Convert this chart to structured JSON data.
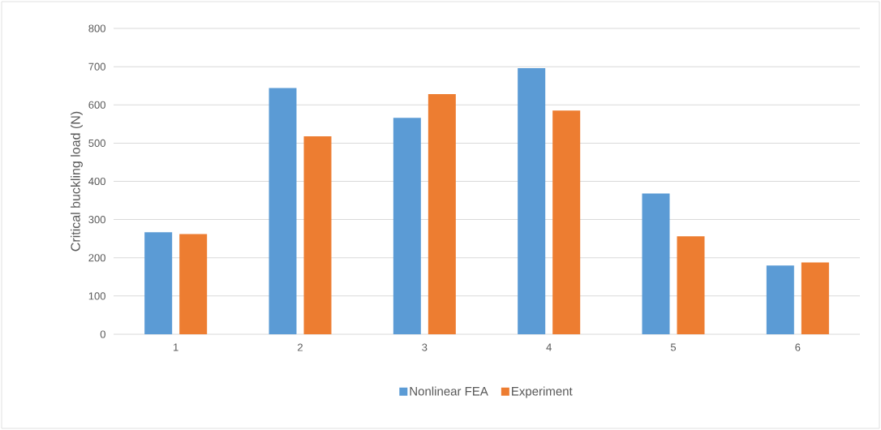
{
  "chart_data": {
    "type": "bar",
    "ylabel": "Critical buckling load (N)",
    "categories": [
      "1",
      "2",
      "3",
      "4",
      "5",
      "6"
    ],
    "series": [
      {
        "name": "Nonlinear FEA",
        "color": "#5b9bd5",
        "values": [
          267,
          644,
          566,
          696,
          368,
          180
        ]
      },
      {
        "name": "Experiment",
        "color": "#ed7d31",
        "values": [
          262,
          518,
          628,
          585,
          256,
          188
        ]
      }
    ],
    "ylim": [
      0,
      800
    ],
    "yticks": [
      0,
      100,
      200,
      300,
      400,
      500,
      600,
      700,
      800
    ],
    "grid": "y",
    "legend": "bottom"
  }
}
